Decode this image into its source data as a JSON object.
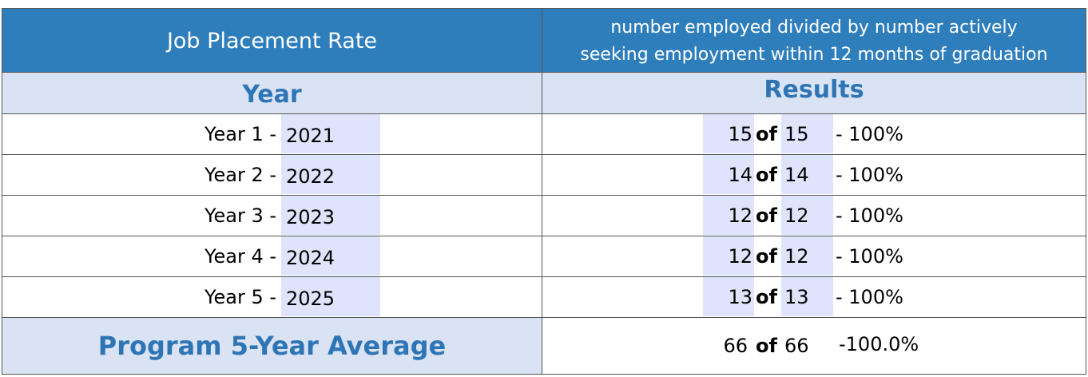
{
  "header": {
    "title": "Job Placement Rate",
    "description": [
      "number employed divided by number actively",
      "seeking employment within 12 months of graduation"
    ]
  },
  "columns": [
    "Year",
    "Results"
  ],
  "rows": [
    {
      "label": "Year 1 -",
      "year": 2021,
      "employed": 15,
      "of": "of",
      "seeking": 15,
      "rate": "- 100%"
    },
    {
      "label": "Year 2 -",
      "year": 2022,
      "employed": 14,
      "of": "of",
      "seeking": 14,
      "rate": "- 100%"
    },
    {
      "label": "Year 3 -",
      "year": 2023,
      "employed": 12,
      "of": "of",
      "seeking": 12,
      "rate": "- 100%"
    },
    {
      "label": "Year 4 -",
      "year": 2024,
      "employed": 12,
      "of": "of",
      "seeking": 12,
      "rate": "- 100%"
    },
    {
      "label": "Year 5 -",
      "year": 2025,
      "employed": 13,
      "of": "of",
      "seeking": 13,
      "rate": "- 100%"
    }
  ],
  "average": {
    "label": "Program 5-Year Average",
    "employed": 66,
    "of": "of",
    "seeking": 66,
    "rate": "-100.0%"
  }
}
